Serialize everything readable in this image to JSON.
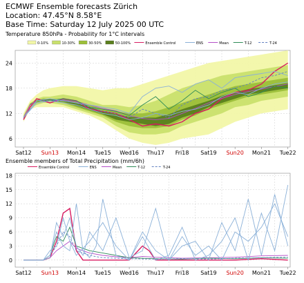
{
  "header": {
    "title": "ECMWF Ensemble forecasts Zürich",
    "location": "Location:  47.45°N 8.58°E",
    "base_time": "Base Time: Saturday 12 July 2025 00 UTC"
  },
  "colors": {
    "bg": "#ffffff",
    "prob_0_10": "#f2f7a8",
    "prob_10_30": "#c9e06d",
    "prob_30_50": "#9cbf3a",
    "prob_50_100": "#5a7f1e",
    "control": "#d81b60",
    "ens": "#8ab0d8",
    "mean": "#b44fc8",
    "t12": "#2e8b57",
    "t24": "#6080c0",
    "weekend": "#d00000",
    "grid": "#cccccc"
  },
  "days": [
    {
      "label": "Sat12",
      "weekend": false
    },
    {
      "label": "Sun13",
      "weekend": true
    },
    {
      "label": "Mon14",
      "weekend": false
    },
    {
      "label": "Tue15",
      "weekend": false
    },
    {
      "label": "Wed16",
      "weekend": false
    },
    {
      "label": "Thu17",
      "weekend": false
    },
    {
      "label": "Fri18",
      "weekend": false
    },
    {
      "label": "Sat19",
      "weekend": false
    },
    {
      "label": "Sun20",
      "weekend": true
    },
    {
      "label": "Mon21",
      "weekend": false
    },
    {
      "label": "Tue22",
      "weekend": false
    }
  ],
  "chart_data": [
    {
      "type": "area",
      "title": "Temperature 850hPa - Probability for 1°C intervals",
      "xlabel": "",
      "ylabel": "",
      "ylim": [
        4,
        27
      ],
      "yticks": [
        6,
        12,
        18,
        24
      ],
      "grid": true,
      "legend": [
        {
          "label": "0-10%",
          "kind": "box",
          "color": "prob_0_10"
        },
        {
          "label": "10-30%",
          "kind": "box",
          "color": "prob_10_30"
        },
        {
          "label": "30-50%",
          "kind": "box",
          "color": "prob_30_50"
        },
        {
          "label": "50-100%",
          "kind": "box",
          "color": "prob_50_100"
        },
        {
          "label": "Ensemble Control",
          "kind": "line",
          "color": "control"
        },
        {
          "label": "ENS",
          "kind": "line",
          "color": "ens"
        },
        {
          "label": "Mean",
          "kind": "line",
          "color": "mean"
        },
        {
          "label": "T-12",
          "kind": "line",
          "color": "t12"
        },
        {
          "label": "T-24",
          "kind": "dash",
          "color": "t24"
        }
      ],
      "x_days": [
        0,
        0.25,
        0.5,
        0.75,
        1,
        1.5,
        2,
        2.5,
        3,
        3.5,
        4,
        4.5,
        5,
        5.5,
        6,
        6.5,
        7,
        7.5,
        8,
        8.5,
        9,
        9.5,
        10
      ],
      "envelope": {
        "p0_10_low": [
          10,
          13,
          13.5,
          13.5,
          13.5,
          13.5,
          12.5,
          11.5,
          10,
          8,
          6,
          5,
          4.5,
          5,
          6,
          6.5,
          7,
          8.5,
          10,
          11,
          12,
          12.5,
          13
        ],
        "p0_10_high": [
          12,
          15,
          16.5,
          17.5,
          18,
          18.5,
          18.5,
          18,
          17.5,
          18,
          18,
          19,
          20,
          21,
          22,
          23,
          24,
          24.5,
          25,
          25.5,
          26,
          26.5,
          27
        ],
        "p10_30_low": [
          10.5,
          13.5,
          14,
          14.5,
          14.5,
          14,
          13,
          12,
          11,
          9,
          7.5,
          7,
          7,
          7.5,
          9,
          10,
          11,
          12,
          13.5,
          14,
          15,
          15.5,
          16
        ],
        "p10_30_high": [
          11.5,
          14.5,
          15.5,
          16,
          16,
          16.5,
          16,
          15,
          14,
          14,
          13.5,
          14,
          15,
          16.5,
          18,
          19,
          20,
          21,
          21.5,
          22,
          22.5,
          23,
          23.5
        ],
        "p30_50_low": [
          10.8,
          14,
          14.5,
          15,
          15,
          14.5,
          13.5,
          12.5,
          11.5,
          10,
          9,
          8.5,
          8.5,
          9,
          10.5,
          11.5,
          13,
          14,
          15,
          16,
          16.5,
          17,
          17.5
        ],
        "p30_50_high": [
          11.2,
          14.3,
          15.2,
          15.5,
          15.5,
          15.5,
          15,
          14,
          13,
          12.5,
          12,
          12,
          12.5,
          13.5,
          14.5,
          15.5,
          16.5,
          17.5,
          18.5,
          19,
          19.5,
          20,
          20.5
        ],
        "p50_100_low": [
          10.9,
          14.1,
          14.8,
          15.1,
          15.1,
          14.8,
          13.8,
          12.8,
          11.8,
          10.5,
          10,
          9.5,
          9,
          9.5,
          11,
          12,
          13.5,
          14.5,
          15.5,
          16.5,
          17,
          17.5,
          18
        ],
        "p50_100_high": [
          11.1,
          14.2,
          15.1,
          15.4,
          15.4,
          15.2,
          14.6,
          13.5,
          12.5,
          11.8,
          11.2,
          11,
          11,
          11.8,
          13,
          14,
          15,
          16.2,
          17,
          17.8,
          18.2,
          18.7,
          19.2
        ]
      },
      "series": [
        {
          "name": "Ensemble Control",
          "color": "control",
          "x": [
            0,
            0.25,
            0.5,
            1,
            1.5,
            2,
            2.5,
            3,
            3.5,
            4,
            4.5,
            5,
            5.5,
            6,
            6.5,
            7,
            7.5,
            8,
            8.5,
            9,
            9.5,
            10
          ],
          "y": [
            10.5,
            13.5,
            15.5,
            14.5,
            15.5,
            15,
            13,
            12.5,
            12,
            10.5,
            9,
            9.5,
            9,
            10,
            12,
            13,
            15.5,
            17,
            17.5,
            19,
            22,
            24
          ]
        },
        {
          "name": "Mean",
          "color": "mean",
          "x": [
            0,
            0.25,
            0.5,
            1,
            1.5,
            2,
            2.5,
            3,
            3.5,
            4,
            4.5,
            5,
            5.5,
            6,
            6.5,
            7,
            7.5,
            8,
            8.5,
            9,
            9.5,
            10
          ],
          "y": [
            11,
            14,
            15,
            15,
            15.2,
            14.8,
            14,
            13.2,
            12.6,
            11.5,
            10.8,
            10.5,
            10.8,
            12,
            13.2,
            14.5,
            15.6,
            16.5,
            17.2,
            17.8,
            18.4,
            19
          ]
        },
        {
          "name": "T-12",
          "color": "t12",
          "x": [
            0,
            0.5,
            1,
            1.5,
            2,
            2.5,
            3,
            3.5,
            4,
            4.5,
            5,
            5.5,
            6,
            6.5,
            7,
            7.5,
            8,
            8.5,
            9,
            9.5,
            10
          ],
          "y": [
            11,
            15,
            15,
            15.5,
            15,
            13.5,
            13,
            12.5,
            11.5,
            14,
            16,
            13,
            15,
            17.5,
            15.5,
            17,
            18,
            16,
            17,
            18.5,
            18
          ]
        },
        {
          "name": "T-24",
          "color": "t24",
          "dash": true,
          "x": [
            0,
            0.5,
            1,
            1.5,
            2,
            2.5,
            3,
            3.5,
            4,
            4.5,
            5,
            5.5,
            6,
            6.5,
            7,
            7.5,
            8,
            8.5,
            9,
            9.5,
            10
          ],
          "y": [
            11,
            15,
            15,
            15,
            14.5,
            13.5,
            12.5,
            12,
            11,
            13,
            12,
            11,
            14,
            15.5,
            16,
            17.5,
            18,
            19,
            20.5,
            21,
            22
          ]
        },
        {
          "name": "ENS",
          "color": "ens",
          "x": [
            0,
            0.5,
            1,
            1.5,
            2,
            2.5,
            3,
            3.5,
            4,
            4.5,
            5,
            5.5,
            6,
            6.5,
            7,
            7.5,
            8,
            8.5,
            9,
            9.5,
            10
          ],
          "y": [
            11,
            15,
            15.5,
            15,
            14.5,
            14,
            13.5,
            13,
            12,
            16,
            18,
            18.5,
            17,
            19,
            20,
            18,
            20.5,
            21,
            21.5,
            22,
            21
          ]
        },
        {
          "name": "ENS",
          "color": "ens",
          "x": [
            0,
            0.5,
            1,
            1.5,
            2,
            2.5,
            3,
            3.5,
            4,
            4.5,
            5,
            5.5,
            6,
            6.5,
            7,
            7.5,
            8,
            8.5,
            9,
            9.5,
            10
          ],
          "y": [
            11,
            14.5,
            15,
            14.5,
            14,
            13,
            12,
            11.5,
            10.5,
            11,
            12,
            11.5,
            12.5,
            13,
            14,
            16,
            17,
            16.5,
            18,
            19,
            19.5
          ]
        }
      ]
    },
    {
      "type": "line",
      "title": "Ensemble members of Total Precipitation (mm/6h)",
      "xlabel": "",
      "ylabel": "",
      "ylim": [
        -1.5,
        18.5
      ],
      "yticks": [
        0,
        3,
        6,
        9,
        12,
        15,
        18
      ],
      "grid": true,
      "legend": [
        {
          "label": "Ensemble Control",
          "kind": "line",
          "color": "control"
        },
        {
          "label": "ENS",
          "kind": "line",
          "color": "ens"
        },
        {
          "label": "Mean",
          "kind": "line",
          "color": "mean"
        },
        {
          "label": "T-12",
          "kind": "line",
          "color": "t12"
        },
        {
          "label": "T-24",
          "kind": "dash",
          "color": "t24"
        }
      ],
      "series": [
        {
          "name": "Ensemble Control",
          "color": "control",
          "x": [
            0,
            0.75,
            1,
            1.25,
            1.5,
            1.75,
            2,
            2.25,
            2.5,
            3,
            3.5,
            4,
            4.25,
            4.5,
            4.75,
            5,
            6,
            7,
            8,
            9,
            10
          ],
          "y": [
            0,
            0,
            0.5,
            4,
            10,
            11,
            2,
            0,
            0,
            0,
            0,
            0,
            1.5,
            3,
            2,
            0,
            0,
            0,
            0,
            0.3,
            0
          ]
        },
        {
          "name": "Mean",
          "color": "mean",
          "x": [
            0,
            0.75,
            1,
            1.25,
            1.5,
            1.75,
            2,
            2.5,
            3,
            3.5,
            4,
            4.5,
            5,
            6,
            7,
            8,
            9,
            10
          ],
          "y": [
            0,
            0,
            0.5,
            2,
            3,
            4,
            2.5,
            1.5,
            1,
            0.7,
            0.5,
            0.8,
            0.6,
            0.4,
            0.5,
            0.6,
            0.9,
            1
          ]
        },
        {
          "name": "T-12",
          "color": "t12",
          "x": [
            0,
            0.75,
            1,
            1.25,
            1.5,
            1.75,
            2,
            2.5,
            3,
            3.5,
            4,
            5,
            6,
            7,
            8,
            9,
            10
          ],
          "y": [
            0,
            0,
            1,
            5,
            4,
            7,
            3,
            2,
            1.5,
            1,
            0.5,
            0.3,
            0.2,
            0.4,
            0.3,
            0.5,
            0.4
          ]
        },
        {
          "name": "T-24",
          "color": "t24",
          "dash": true,
          "x": [
            0,
            0.75,
            1,
            1.25,
            1.5,
            1.75,
            2,
            2.5,
            3,
            4,
            5,
            6,
            7,
            8,
            9,
            10
          ],
          "y": [
            0,
            0,
            1,
            3,
            6,
            5,
            2,
            1,
            0.5,
            0.3,
            0.2,
            0.3,
            0.2,
            0.4,
            0.5,
            0.6
          ]
        },
        {
          "name": "ENS",
          "color": "ens",
          "x": [
            0,
            0.75,
            1,
            1.25,
            1.5,
            1.75,
            2,
            2.25,
            2.5,
            2.75,
            3,
            3.5,
            4,
            4.5,
            5,
            5.5,
            6,
            6.5,
            7,
            7.5,
            8,
            8.5,
            9,
            9.5,
            10
          ],
          "y": [
            0,
            0,
            1,
            6,
            3,
            2,
            12,
            2,
            0.5,
            3,
            13,
            1,
            0,
            5,
            0,
            1,
            7,
            0,
            1,
            4,
            9,
            0,
            10,
            2,
            16
          ]
        },
        {
          "name": "ENS",
          "color": "ens",
          "x": [
            0,
            0.75,
            1,
            1.25,
            1.5,
            1.75,
            2,
            2.25,
            2.5,
            3,
            3.5,
            4,
            4.5,
            5,
            5.5,
            6,
            6.5,
            7,
            7.5,
            8,
            8.5,
            9,
            9.5,
            10
          ],
          "y": [
            0,
            0,
            0.5,
            8,
            5,
            9,
            3,
            1,
            6,
            2,
            9,
            0.5,
            2,
            11,
            0,
            3,
            4,
            0,
            8,
            2,
            13,
            1,
            14,
            3
          ]
        },
        {
          "name": "ENS",
          "color": "ens",
          "x": [
            0,
            0.75,
            1,
            1.25,
            1.5,
            1.75,
            2,
            2.5,
            3,
            3.5,
            4,
            4.5,
            5,
            5.5,
            6,
            6.5,
            7,
            7.5,
            8,
            8.5,
            9,
            9.5,
            10
          ],
          "y": [
            0,
            0,
            2,
            3,
            9,
            4,
            1,
            4,
            8,
            3,
            0,
            6,
            2,
            0,
            5,
            1,
            3,
            0,
            6,
            4,
            7,
            12,
            5
          ]
        }
      ]
    }
  ]
}
